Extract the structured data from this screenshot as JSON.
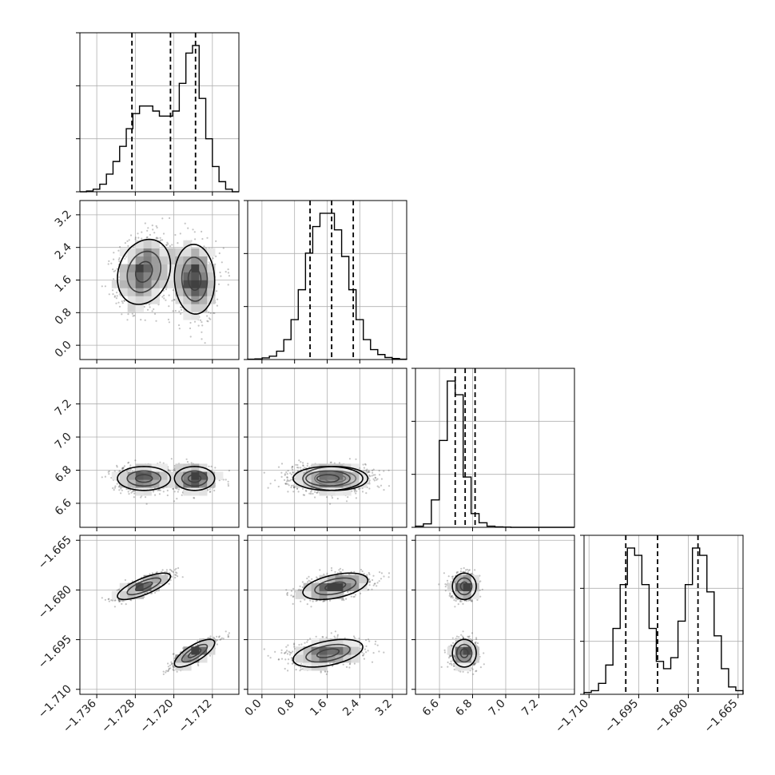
{
  "chart_data": {
    "type": "corner",
    "parameters": [
      {
        "range": [
          -1.7395,
          -1.7065
        ],
        "ticks": [
          -1.736,
          -1.728,
          -1.72,
          -1.712
        ],
        "tick_labels": [
          "−1.736",
          "−1.728",
          "−1.720",
          "−1.712"
        ],
        "quantiles": [
          -1.7287,
          -1.7207,
          -1.7155
        ],
        "hist_counts": [
          0,
          0.3,
          1,
          3,
          7,
          12,
          18,
          25,
          31,
          34,
          34,
          32,
          30,
          30,
          32,
          43,
          55,
          58,
          37,
          21,
          10,
          4,
          1,
          0
        ]
      },
      {
        "range": [
          -0.35,
          3.55
        ],
        "ticks": [
          0.0,
          0.8,
          1.6,
          2.4,
          3.2
        ],
        "tick_labels": [
          "0.0",
          "0.8",
          "1.6",
          "2.4",
          "3.2"
        ],
        "quantiles": [
          1.18,
          1.71,
          2.24
        ],
        "hist_counts": [
          0.1,
          0.2,
          0.5,
          1,
          2.5,
          6,
          12,
          21,
          32,
          40,
          44,
          44,
          39,
          31,
          21,
          12,
          6,
          3,
          1.5,
          0.6,
          0.3,
          0.1
        ]
      },
      {
        "range": [
          6.455,
          7.415
        ],
        "ticks": [
          6.6,
          6.8,
          7.0,
          7.2
        ],
        "tick_labels": [
          "6.6",
          "6.8",
          "7.0",
          "7.2"
        ],
        "quantiles": [
          6.695,
          6.755,
          6.815
        ],
        "hist_counts": [
          0.5,
          1.5,
          12,
          38,
          64,
          58,
          22,
          6,
          2,
          0.5,
          0.2,
          0.1,
          0,
          0,
          0,
          0,
          0,
          0,
          0,
          0
        ]
      },
      {
        "range": [
          -1.7115,
          -1.6635
        ],
        "ticks": [
          -1.71,
          -1.695,
          -1.68,
          -1.665
        ],
        "tick_labels": [
          "−1.710",
          "−1.695",
          "−1.680",
          "−1.665"
        ],
        "quantiles": [
          -1.6989,
          -1.6893,
          -1.6771
        ],
        "hist_counts": [
          0.5,
          1,
          3,
          8,
          18,
          30,
          40,
          38,
          30,
          18,
          9,
          7,
          10,
          20,
          30,
          40,
          38,
          28,
          16,
          7,
          2,
          1
        ]
      }
    ],
    "modes": [
      {
        "mean": [
          -1.7262,
          1.8,
          6.75,
          -1.6789
        ],
        "sd": [
          0.0029,
          0.42,
          0.038,
          0.0021
        ],
        "corr12": 0.2,
        "corr13": 0.0,
        "corr14": 0.75,
        "corr23": 0.05,
        "corr24": 0.45,
        "corr34": 0.1,
        "weight": 0.5
      },
      {
        "mean": [
          -1.7157,
          1.62,
          6.75,
          -1.6991
        ],
        "sd": [
          0.0022,
          0.45,
          0.038,
          0.0022
        ],
        "corr12": -0.05,
        "corr13": 0.0,
        "corr14": 0.75,
        "corr23": 0.05,
        "corr24": 0.45,
        "corr34": 0.1,
        "weight": 0.5
      }
    ],
    "grid": true,
    "quantile_line_style": "dashed",
    "contour_levels": 3
  }
}
